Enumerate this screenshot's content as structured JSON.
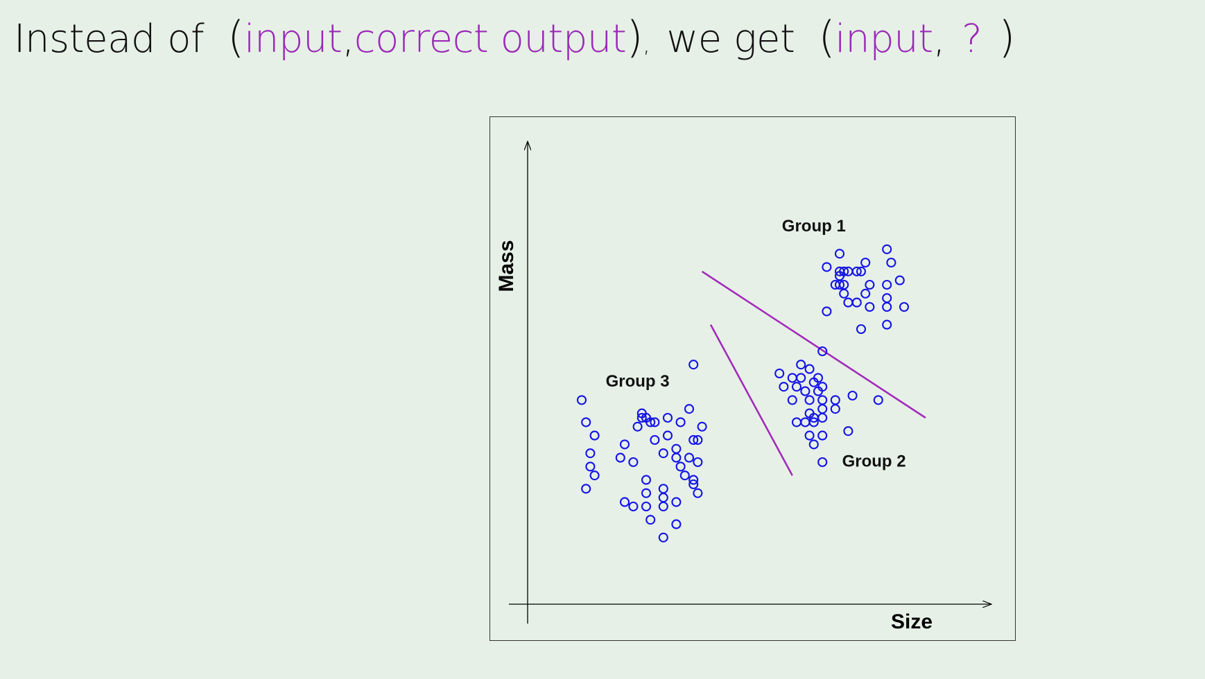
{
  "headline": {
    "lead": "Instead of",
    "open1": "(",
    "input1": "input",
    "sep1": ",",
    "correct_output": "correct output",
    "close1": ")",
    "trail_comma": ",",
    "we_get": "we get",
    "open2": "(",
    "input2": "input",
    "sep2": ",",
    "question": "?",
    "close2": ")"
  },
  "colors": {
    "highlight": "#9a2ab7",
    "points": "#1414e6",
    "boundary": "#a22bbb",
    "background": "#e7f0e7"
  },
  "chart_data": {
    "type": "scatter",
    "xlabel": "Size",
    "ylabel": "Mass",
    "xlim": [
      0,
      100
    ],
    "ylim": [
      0,
      100
    ],
    "grid": false,
    "axis_ticks": false,
    "marker": "open-circle",
    "annotations": [
      {
        "text": "Group 1",
        "x": 64,
        "y": 82
      },
      {
        "text": "Group 2",
        "x": 78,
        "y": 29
      },
      {
        "text": "Group 3",
        "x": 23,
        "y": 47
      }
    ],
    "boundaries": [
      {
        "x1": 38,
        "y1": 73,
        "x2": 90,
        "y2": 40
      },
      {
        "x1": 40,
        "y1": 61,
        "x2": 59,
        "y2": 27
      }
    ],
    "series": [
      {
        "values": [
          {
            "x": 70,
            "y": 77
          },
          {
            "x": 67,
            "y": 74
          },
          {
            "x": 81,
            "y": 78
          },
          {
            "x": 76,
            "y": 75
          },
          {
            "x": 82,
            "y": 75
          },
          {
            "x": 70,
            "y": 73
          },
          {
            "x": 71,
            "y": 73
          },
          {
            "x": 72,
            "y": 73
          },
          {
            "x": 74,
            "y": 73
          },
          {
            "x": 75,
            "y": 73
          },
          {
            "x": 70,
            "y": 72
          },
          {
            "x": 84,
            "y": 71
          },
          {
            "x": 69,
            "y": 70
          },
          {
            "x": 70,
            "y": 70
          },
          {
            "x": 71,
            "y": 70
          },
          {
            "x": 77,
            "y": 70
          },
          {
            "x": 81,
            "y": 70
          },
          {
            "x": 71,
            "y": 68
          },
          {
            "x": 76,
            "y": 68
          },
          {
            "x": 72,
            "y": 66
          },
          {
            "x": 74,
            "y": 66
          },
          {
            "x": 81,
            "y": 67
          },
          {
            "x": 77,
            "y": 65
          },
          {
            "x": 81,
            "y": 65
          },
          {
            "x": 85,
            "y": 65
          },
          {
            "x": 67,
            "y": 64
          },
          {
            "x": 75,
            "y": 60
          },
          {
            "x": 81,
            "y": 61
          }
        ]
      },
      {
        "values": [
          {
            "x": 66,
            "y": 55
          },
          {
            "x": 61,
            "y": 52
          },
          {
            "x": 63,
            "y": 51
          },
          {
            "x": 56,
            "y": 50
          },
          {
            "x": 59,
            "y": 49
          },
          {
            "x": 61,
            "y": 49
          },
          {
            "x": 65,
            "y": 49
          },
          {
            "x": 57,
            "y": 47
          },
          {
            "x": 60,
            "y": 47
          },
          {
            "x": 64,
            "y": 48
          },
          {
            "x": 66,
            "y": 47
          },
          {
            "x": 62,
            "y": 46
          },
          {
            "x": 65,
            "y": 46
          },
          {
            "x": 73,
            "y": 45
          },
          {
            "x": 59,
            "y": 44
          },
          {
            "x": 63,
            "y": 44
          },
          {
            "x": 66,
            "y": 44
          },
          {
            "x": 69,
            "y": 44
          },
          {
            "x": 79,
            "y": 44
          },
          {
            "x": 63,
            "y": 41
          },
          {
            "x": 66,
            "y": 42
          },
          {
            "x": 69,
            "y": 42
          },
          {
            "x": 64,
            "y": 40
          },
          {
            "x": 66,
            "y": 40
          },
          {
            "x": 60,
            "y": 39
          },
          {
            "x": 62,
            "y": 39
          },
          {
            "x": 64,
            "y": 39
          },
          {
            "x": 72,
            "y": 37
          },
          {
            "x": 63,
            "y": 36
          },
          {
            "x": 66,
            "y": 36
          },
          {
            "x": 64,
            "y": 34
          },
          {
            "x": 66,
            "y": 30
          }
        ]
      },
      {
        "values": [
          {
            "x": 36,
            "y": 52
          },
          {
            "x": 10,
            "y": 44
          },
          {
            "x": 35,
            "y": 42
          },
          {
            "x": 24,
            "y": 41
          },
          {
            "x": 24,
            "y": 40
          },
          {
            "x": 25,
            "y": 40
          },
          {
            "x": 26,
            "y": 39
          },
          {
            "x": 27,
            "y": 39
          },
          {
            "x": 30,
            "y": 40
          },
          {
            "x": 33,
            "y": 39
          },
          {
            "x": 11,
            "y": 39
          },
          {
            "x": 23,
            "y": 38
          },
          {
            "x": 38,
            "y": 38
          },
          {
            "x": 13,
            "y": 36
          },
          {
            "x": 30,
            "y": 36
          },
          {
            "x": 36,
            "y": 35
          },
          {
            "x": 37,
            "y": 35
          },
          {
            "x": 27,
            "y": 35
          },
          {
            "x": 20,
            "y": 34
          },
          {
            "x": 12,
            "y": 32
          },
          {
            "x": 29,
            "y": 32
          },
          {
            "x": 32,
            "y": 33
          },
          {
            "x": 19,
            "y": 31
          },
          {
            "x": 22,
            "y": 30
          },
          {
            "x": 32,
            "y": 31
          },
          {
            "x": 35,
            "y": 31
          },
          {
            "x": 12,
            "y": 29
          },
          {
            "x": 33,
            "y": 29
          },
          {
            "x": 37,
            "y": 30
          },
          {
            "x": 13,
            "y": 27
          },
          {
            "x": 34,
            "y": 27
          },
          {
            "x": 25,
            "y": 26
          },
          {
            "x": 36,
            "y": 26
          },
          {
            "x": 11,
            "y": 24
          },
          {
            "x": 29,
            "y": 24
          },
          {
            "x": 36,
            "y": 25
          },
          {
            "x": 37,
            "y": 23
          },
          {
            "x": 25,
            "y": 23
          },
          {
            "x": 29,
            "y": 22
          },
          {
            "x": 20,
            "y": 21
          },
          {
            "x": 22,
            "y": 20
          },
          {
            "x": 32,
            "y": 21
          },
          {
            "x": 25,
            "y": 20
          },
          {
            "x": 29,
            "y": 20
          },
          {
            "x": 26,
            "y": 17
          },
          {
            "x": 32,
            "y": 16
          },
          {
            "x": 29,
            "y": 13
          }
        ]
      }
    ]
  }
}
